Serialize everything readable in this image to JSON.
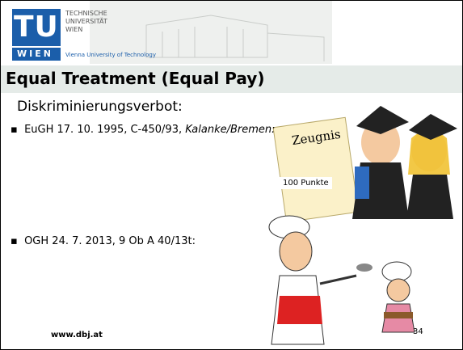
{
  "header": {
    "logo_mark": "TU",
    "logo_sub": "WIEN",
    "university_lines": [
      "TECHNISCHE",
      "UNIVERSITÄT",
      "WIEN"
    ],
    "university_en": "Vienna University of Technology"
  },
  "slide": {
    "title": "Equal Treatment (Equal Pay)",
    "heading": "Diskriminierungsverbot:",
    "bullets": [
      {
        "text": "EuGH 17. 10. 1995, C-450/93, ",
        "italic": "Kalanke/Bremen:"
      },
      {
        "text": "OGH 24. 7. 2013, 9 Ob A 40/13t:"
      }
    ],
    "certificate": {
      "title": "Zeugnis",
      "score": "100 Punkte"
    },
    "footer": {
      "url": "www.dbj.at",
      "page": "34"
    }
  }
}
